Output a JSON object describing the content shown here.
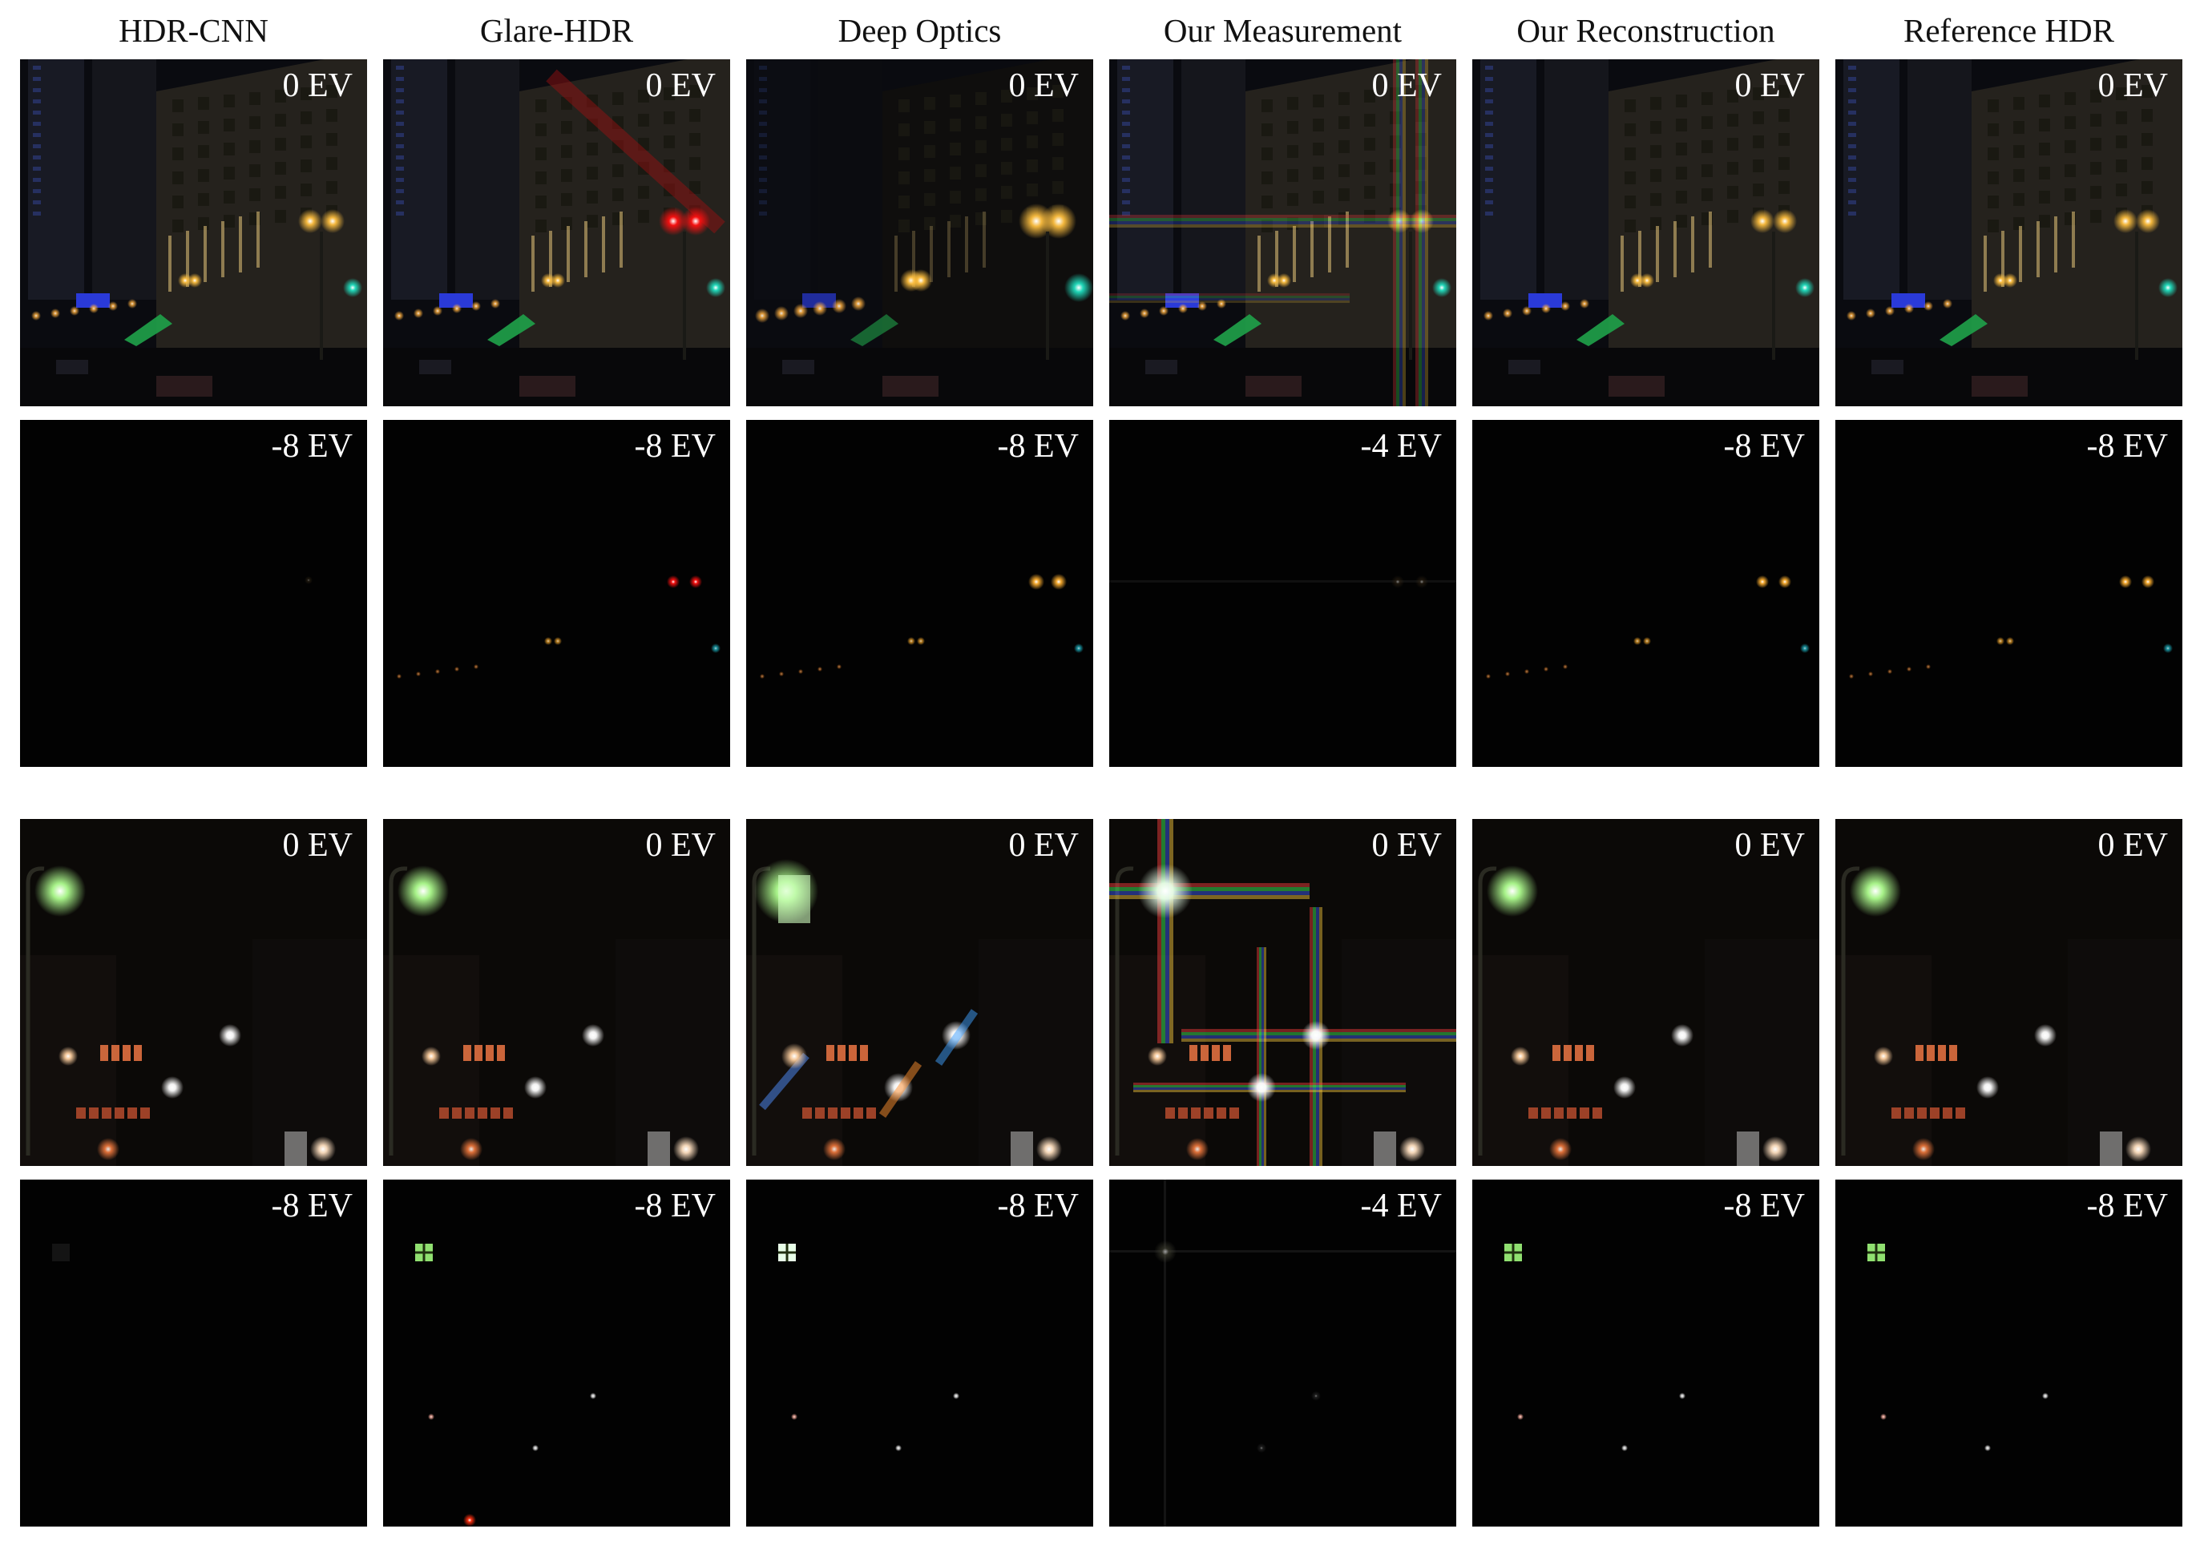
{
  "columns": [
    {
      "id": "hdr-cnn",
      "title": "HDR-CNN",
      "artifact": "none"
    },
    {
      "id": "glare-hdr",
      "title": "Glare-HDR",
      "artifact": "red-glare"
    },
    {
      "id": "deep-optics",
      "title": "Deep Optics",
      "artifact": "blur"
    },
    {
      "id": "our-measurement",
      "title": "Our Measurement",
      "artifact": "streaks"
    },
    {
      "id": "our-reconstruction",
      "title": "Our Reconstruction",
      "artifact": "none"
    },
    {
      "id": "reference-hdr",
      "title": "Reference HDR",
      "artifact": "none"
    }
  ],
  "rows": [
    {
      "scene": "street",
      "exposures": [
        "0 EV",
        "0 EV",
        "0 EV",
        "0 EV",
        "0 EV",
        "0 EV"
      ]
    },
    {
      "scene": "street-dark",
      "exposures": [
        "-8 EV",
        "-8 EV",
        "-8 EV",
        "-4 EV",
        "-8 EV",
        "-8 EV"
      ]
    },
    {
      "scene": "lamp",
      "exposures": [
        "0 EV",
        "0 EV",
        "0 EV",
        "0 EV",
        "0 EV",
        "0 EV"
      ]
    },
    {
      "scene": "lamp-dark",
      "exposures": [
        "-8 EV",
        "-8 EV",
        "-8 EV",
        "-4 EV",
        "-8 EV",
        "-8 EV"
      ]
    }
  ],
  "colors": {
    "background": "#ffffff",
    "label": "#ffffff",
    "panel": "#020202"
  }
}
